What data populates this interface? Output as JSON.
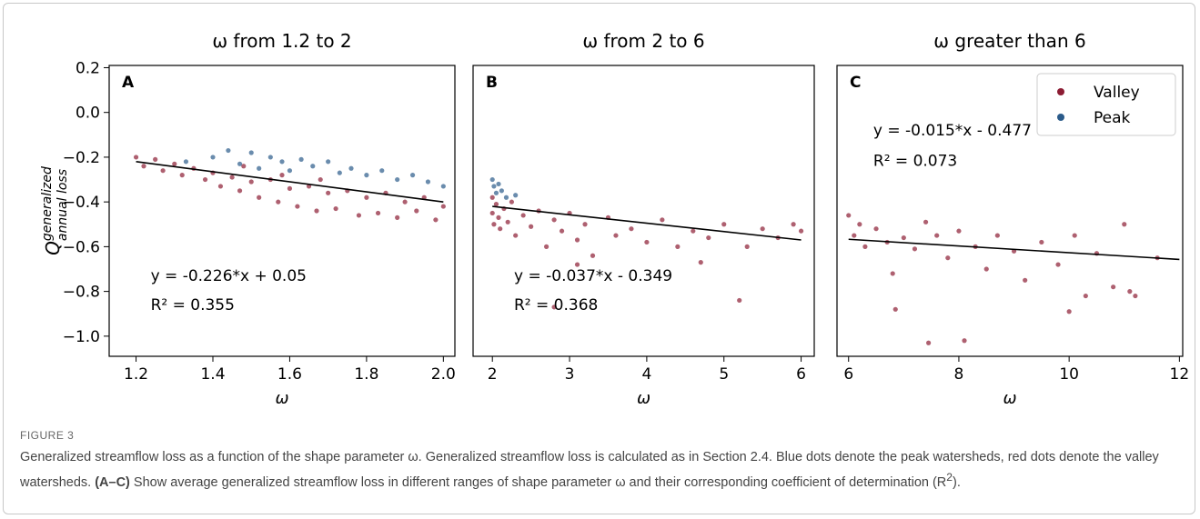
{
  "chart_data": [
    {
      "type": "scatter",
      "title": "ω from 1.2 to 2",
      "panel_label": "A",
      "xlabel": "ω",
      "ylabel": {
        "base": "Q",
        "sup": "generalized",
        "sub": "annual loss"
      },
      "xlim": [
        1.13,
        2.03
      ],
      "ylim": [
        -1.09,
        0.21
      ],
      "xticks": [
        1.2,
        1.4,
        1.6,
        1.8,
        {
          "value": 2,
          "label": "2.0"
        }
      ],
      "yticks": [
        0.2,
        {
          "value": 0,
          "label": "0.0"
        },
        {
          "value": -0.2,
          "label": "−0.2"
        },
        {
          "value": -0.4,
          "label": "−0.4"
        },
        {
          "value": -0.6,
          "label": "−0.6"
        },
        {
          "value": -0.8,
          "label": "−0.8"
        },
        {
          "value": -1,
          "label": "−1.0"
        }
      ],
      "series": [
        {
          "name": "Valley",
          "color": "#8c1c33",
          "x": [
            1.2,
            1.22,
            1.25,
            1.27,
            1.3,
            1.32,
            1.35,
            1.38,
            1.4,
            1.42,
            1.45,
            1.47,
            1.5,
            1.52,
            1.55,
            1.57,
            1.6,
            1.62,
            1.65,
            1.67,
            1.7,
            1.72,
            1.75,
            1.78,
            1.8,
            1.83,
            1.85,
            1.88,
            1.9,
            1.93,
            1.95,
            1.98,
            2.0,
            1.58,
            1.68,
            1.48
          ],
          "values": [
            -0.2,
            -0.24,
            -0.21,
            -0.26,
            -0.23,
            -0.28,
            -0.25,
            -0.3,
            -0.27,
            -0.33,
            -0.29,
            -0.35,
            -0.31,
            -0.38,
            -0.3,
            -0.4,
            -0.34,
            -0.42,
            -0.33,
            -0.44,
            -0.36,
            -0.43,
            -0.35,
            -0.46,
            -0.38,
            -0.45,
            -0.36,
            -0.47,
            -0.4,
            -0.44,
            -0.38,
            -0.48,
            -0.42,
            -0.28,
            -0.3,
            -0.24
          ]
        },
        {
          "name": "Peak",
          "color": "#2b5b8a",
          "x": [
            1.33,
            1.4,
            1.44,
            1.47,
            1.5,
            1.52,
            1.55,
            1.58,
            1.6,
            1.63,
            1.66,
            1.7,
            1.73,
            1.76,
            1.8,
            1.84,
            1.88,
            1.92,
            1.96,
            2.0
          ],
          "values": [
            -0.22,
            -0.2,
            -0.17,
            -0.23,
            -0.18,
            -0.25,
            -0.2,
            -0.22,
            -0.26,
            -0.21,
            -0.24,
            -0.22,
            -0.27,
            -0.25,
            -0.28,
            -0.26,
            -0.3,
            -0.28,
            -0.31,
            -0.33
          ]
        }
      ],
      "trend": {
        "x": [
          1.2,
          2.0
        ],
        "values": [
          -0.22,
          -0.4
        ]
      },
      "annotations": [
        "y = -0.226*x + 0.05",
        "R² = 0.355"
      ]
    },
    {
      "type": "scatter",
      "title": "ω from 2 to 6",
      "panel_label": "B",
      "xlabel": "ω",
      "xlim": [
        1.75,
        6.17
      ],
      "ylim": [
        -1.09,
        0.21
      ],
      "xticks": [
        2,
        3,
        4,
        5,
        6
      ],
      "series": [
        {
          "name": "Valley",
          "color": "#8c1c33",
          "x": [
            2.0,
            2.0,
            2.02,
            2.05,
            2.08,
            2.1,
            2.15,
            2.2,
            2.25,
            2.3,
            2.4,
            2.5,
            2.6,
            2.7,
            2.8,
            2.9,
            3.0,
            3.1,
            3.2,
            3.3,
            3.5,
            3.6,
            3.8,
            4.0,
            4.2,
            4.4,
            4.6,
            4.8,
            5.0,
            5.2,
            5.3,
            5.5,
            5.7,
            5.9,
            6.0,
            2.8,
            3.1,
            4.7
          ],
          "values": [
            -0.38,
            -0.45,
            -0.5,
            -0.41,
            -0.47,
            -0.52,
            -0.43,
            -0.49,
            -0.4,
            -0.55,
            -0.46,
            -0.51,
            -0.44,
            -0.6,
            -0.48,
            -0.53,
            -0.45,
            -0.57,
            -0.5,
            -0.64,
            -0.47,
            -0.55,
            -0.52,
            -0.58,
            -0.48,
            -0.6,
            -0.53,
            -0.56,
            -0.5,
            -0.84,
            -0.6,
            -0.52,
            -0.56,
            -0.5,
            -0.53,
            -0.87,
            -0.68,
            -0.67
          ]
        },
        {
          "name": "Peak",
          "color": "#2b5b8a",
          "x": [
            2.0,
            2.02,
            2.05,
            2.08,
            2.12,
            2.18,
            2.3
          ],
          "values": [
            -0.3,
            -0.33,
            -0.36,
            -0.32,
            -0.35,
            -0.38,
            -0.37
          ]
        }
      ],
      "trend": {
        "x": [
          2,
          6
        ],
        "values": [
          -0.42,
          -0.57
        ]
      },
      "annotations": [
        "y = -0.037*x - 0.349",
        "R² = 0.368"
      ]
    },
    {
      "type": "scatter",
      "title": "ω greater than 6",
      "panel_label": "C",
      "xlabel": "ω",
      "xlim": [
        5.79,
        12.06
      ],
      "ylim": [
        -1.09,
        0.21
      ],
      "xticks": [
        6,
        8,
        10,
        12
      ],
      "legend": "upper right",
      "series": [
        {
          "name": "Valley",
          "color": "#8c1c33",
          "x": [
            6.0,
            6.1,
            6.2,
            6.3,
            6.5,
            6.7,
            6.8,
            6.85,
            7.0,
            7.2,
            7.4,
            7.45,
            7.6,
            7.8,
            8.0,
            8.1,
            8.3,
            8.5,
            8.7,
            9.0,
            9.2,
            9.5,
            9.8,
            10.0,
            10.1,
            10.3,
            10.5,
            10.8,
            11.0,
            11.1,
            11.2,
            11.6
          ],
          "values": [
            -0.46,
            -0.55,
            -0.5,
            -0.6,
            -0.52,
            -0.58,
            -0.72,
            -0.88,
            -0.56,
            -0.61,
            -0.49,
            -1.03,
            -0.55,
            -0.65,
            -0.53,
            -1.02,
            -0.6,
            -0.7,
            -0.55,
            -0.62,
            -0.75,
            -0.58,
            -0.68,
            -0.89,
            -0.55,
            -0.82,
            -0.63,
            -0.78,
            -0.5,
            -0.8,
            -0.82,
            -0.65
          ]
        },
        {
          "name": "Peak",
          "color": "#2b5b8a",
          "x": [],
          "values": []
        }
      ],
      "trend": {
        "x": [
          6,
          12
        ],
        "values": [
          -0.567,
          -0.657
        ]
      },
      "annotations": [
        "y = -0.015*x - 0.477",
        "R² = 0.073"
      ]
    }
  ],
  "figure": {
    "label": "FIGURE 3",
    "caption": [
      "Generalized streamflow loss as a function of the shape parameter ω. Generalized streamflow loss is calculated as in Section 2.4. Blue dots denote the peak watersheds, red dots denote the valley watersheds. ",
      "(A–C)",
      " Show average generalized streamflow loss in different ranges of shape parameter ω and their corresponding coefficient of determination (R",
      "2",
      ")."
    ]
  }
}
